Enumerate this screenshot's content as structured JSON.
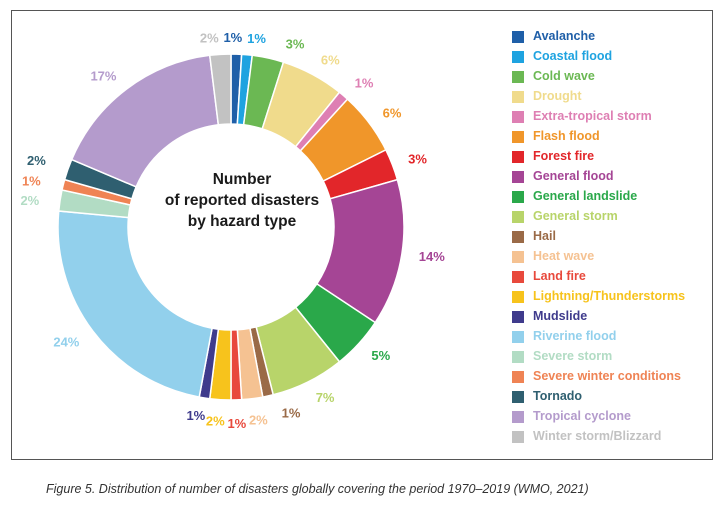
{
  "chart_data": {
    "type": "pie",
    "variant": "donut",
    "title_lines": [
      "Number",
      "of reported disasters",
      "by hazard type"
    ],
    "legend_position": "right",
    "series": [
      {
        "name": "Avalanche",
        "value": 1,
        "label": "1%",
        "color": "#1f5fa8"
      },
      {
        "name": "Coastal flood",
        "value": 1,
        "label": "1%",
        "color": "#1fa3e0"
      },
      {
        "name": "Cold wave",
        "value": 3,
        "label": "3%",
        "color": "#6bb853"
      },
      {
        "name": "Drought",
        "value": 6,
        "label": "6%",
        "color": "#f0db8c"
      },
      {
        "name": "Extra-tropical storm",
        "value": 1,
        "label": "1%",
        "color": "#de7fb3"
      },
      {
        "name": "Flash flood",
        "value": 6,
        "label": "6%",
        "color": "#f0962a"
      },
      {
        "name": "Forest fire",
        "value": 3,
        "label": "3%",
        "color": "#e2262a"
      },
      {
        "name": "General flood",
        "value": 14,
        "label": "14%",
        "color": "#a54595"
      },
      {
        "name": "General landslide",
        "value": 5,
        "label": "5%",
        "color": "#2aa84a"
      },
      {
        "name": "General storm",
        "value": 7,
        "label": "7%",
        "color": "#b8d46a"
      },
      {
        "name": "Hail",
        "value": 1,
        "label": "1%",
        "color": "#9a6a47"
      },
      {
        "name": "Heat wave",
        "value": 2,
        "label": "2%",
        "color": "#f5c292"
      },
      {
        "name": "Land fire",
        "value": 1,
        "label": "1%",
        "color": "#e8493c"
      },
      {
        "name": "Lightning/Thunderstorms",
        "value": 2,
        "label": "2%",
        "color": "#f7c31c"
      },
      {
        "name": "Mudslide",
        "value": 1,
        "label": "1%",
        "color": "#3f3b8c"
      },
      {
        "name": "Riverine flood",
        "value": 24,
        "label": "24%",
        "color": "#92d0ec"
      },
      {
        "name": "Severe storm",
        "value": 2,
        "label": "2%",
        "color": "#b2dcc4"
      },
      {
        "name": "Severe winter conditions",
        "value": 1,
        "label": "1%",
        "color": "#ef8354"
      },
      {
        "name": "Tornado",
        "value": 2,
        "label": "2%",
        "color": "#2f5f70"
      },
      {
        "name": "Tropical cyclone",
        "value": 17,
        "label": "17%",
        "color": "#b49bcc"
      },
      {
        "name": "Winter storm/Blizzard",
        "value": 2,
        "label": "2%",
        "color": "#c2c2c2"
      }
    ]
  },
  "caption": "Figure 5. Distribution of number of disasters globally covering the period 1970–2019 (WMO, 2021)"
}
